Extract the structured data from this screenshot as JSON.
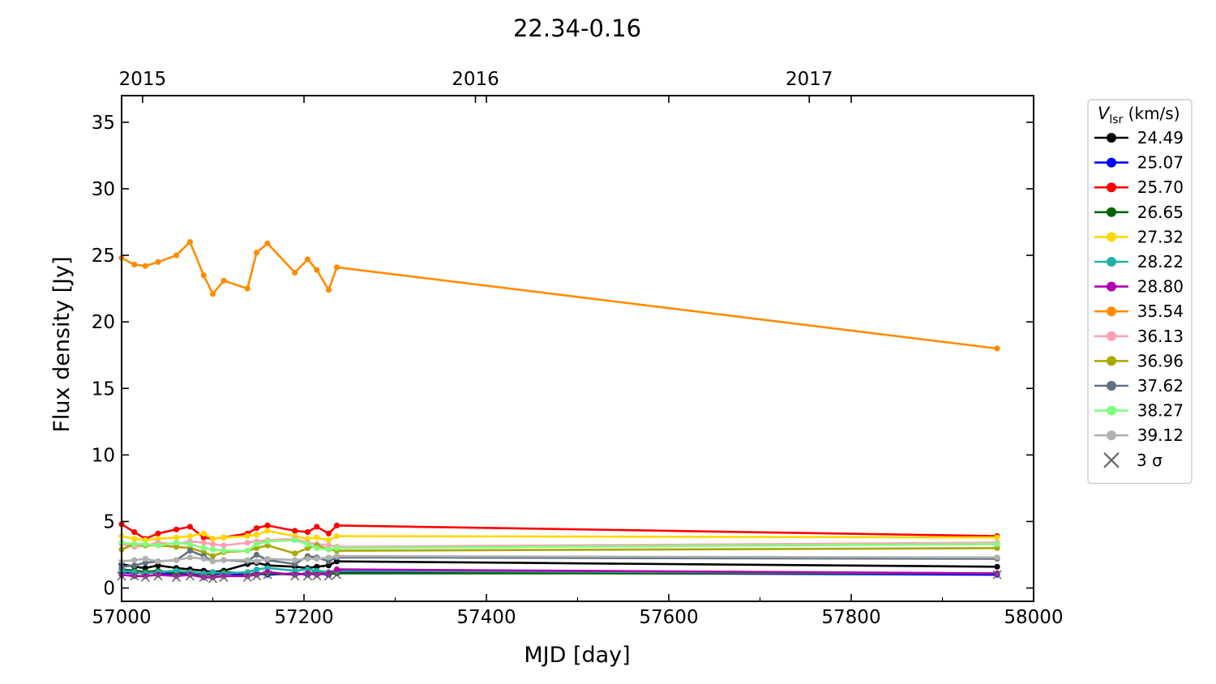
{
  "chart_data": {
    "type": "line",
    "title": "22.34-0.16",
    "xlabel": "MJD [day]",
    "ylabel": "Flux density [Jy]",
    "xlim": [
      57000,
      58000
    ],
    "ylim": [
      -1,
      37
    ],
    "x_ticks": [
      57000,
      57200,
      57400,
      57600,
      57800,
      58000
    ],
    "y_ticks": [
      0,
      5,
      10,
      15,
      20,
      25,
      30,
      35
    ],
    "secondary_x_axis": {
      "ticks": [
        {
          "label": "2015",
          "mjd": 57023
        },
        {
          "label": "2016",
          "mjd": 57388
        },
        {
          "label": "2017",
          "mjd": 57754
        }
      ]
    },
    "grid": false,
    "legend": {
      "placement": "outside-right",
      "title_symbol": "V",
      "title_subscript": "lsr",
      "title_unit": "(km/s)",
      "sigma_label": "3 σ",
      "sigma_color": "#666666"
    },
    "x": [
      57000,
      57014,
      57026,
      57040,
      57060,
      57075,
      57090,
      57100,
      57112,
      57138,
      57148,
      57160,
      57190,
      57204,
      57214,
      57227,
      57236,
      57960
    ],
    "series": [
      {
        "name": "24.49",
        "color": "#000000",
        "values": [
          1.8,
          1.6,
          1.5,
          1.7,
          1.5,
          1.4,
          1.3,
          1.2,
          1.3,
          1.8,
          1.9,
          1.7,
          1.6,
          1.5,
          1.6,
          1.7,
          2.0,
          1.6
        ]
      },
      {
        "name": "25.07",
        "color": "#0000ff",
        "values": [
          1.2,
          1.1,
          1.2,
          1.1,
          1.0,
          1.1,
          1.0,
          1.0,
          1.1,
          1.0,
          1.1,
          1.0,
          1.1,
          1.0,
          1.1,
          1.0,
          1.2,
          1.0
        ]
      },
      {
        "name": "25.70",
        "color": "#ff0000",
        "values": [
          4.8,
          4.2,
          3.7,
          4.1,
          4.4,
          4.6,
          3.8,
          3.7,
          3.8,
          4.1,
          4.5,
          4.7,
          4.3,
          4.2,
          4.6,
          4.1,
          4.7,
          3.9
        ]
      },
      {
        "name": "26.65",
        "color": "#006400",
        "values": [
          1.4,
          1.3,
          1.2,
          1.3,
          1.1,
          1.2,
          1.0,
          1.1,
          1.2,
          1.1,
          1.0,
          1.1,
          1.0,
          1.1,
          1.2,
          1.1,
          1.1,
          1.1
        ]
      },
      {
        "name": "27.32",
        "color": "#ffd700",
        "values": [
          3.9,
          3.7,
          3.6,
          3.7,
          3.8,
          3.9,
          4.1,
          3.7,
          3.8,
          3.9,
          4.0,
          4.3,
          3.9,
          3.7,
          3.8,
          3.6,
          3.9,
          3.8
        ]
      },
      {
        "name": "28.22",
        "color": "#20b2aa",
        "values": [
          1.3,
          1.2,
          1.1,
          1.2,
          1.3,
          1.2,
          1.1,
          1.2,
          1.1,
          1.2,
          1.4,
          1.5,
          1.3,
          1.4,
          1.3,
          1.2,
          1.3,
          1.1
        ]
      },
      {
        "name": "28.80",
        "color": "#b000b0",
        "values": [
          1.0,
          0.9,
          0.9,
          1.0,
          0.9,
          1.0,
          0.8,
          0.8,
          0.9,
          0.9,
          1.0,
          1.2,
          1.0,
          1.1,
          1.0,
          1.1,
          1.4,
          1.1
        ]
      },
      {
        "name": "35.54",
        "color": "#ff8c00",
        "values": [
          24.8,
          24.3,
          24.2,
          24.5,
          25.0,
          26.0,
          23.5,
          22.1,
          23.1,
          22.5,
          25.2,
          25.9,
          23.7,
          24.7,
          23.9,
          22.4,
          24.1,
          18.0
        ]
      },
      {
        "name": "36.13",
        "color": "#ffa0b4",
        "values": [
          3.3,
          3.1,
          3.2,
          3.4,
          3.3,
          3.5,
          3.4,
          3.3,
          3.2,
          3.4,
          3.5,
          3.6,
          3.7,
          3.4,
          3.3,
          3.2,
          3.1,
          3.4
        ]
      },
      {
        "name": "36.96",
        "color": "#a8a800",
        "values": [
          2.9,
          3.3,
          3.2,
          3.2,
          3.1,
          3.0,
          2.7,
          2.4,
          2.7,
          2.8,
          3.0,
          3.2,
          2.6,
          3.0,
          3.2,
          2.9,
          2.8,
          3.0
        ]
      },
      {
        "name": "37.62",
        "color": "#607080",
        "values": [
          1.6,
          1.7,
          1.9,
          2.0,
          2.1,
          2.8,
          2.4,
          2.0,
          2.1,
          2.0,
          2.5,
          2.1,
          1.8,
          2.4,
          2.3,
          2.0,
          2.3,
          2.2
        ]
      },
      {
        "name": "38.27",
        "color": "#80ff80",
        "values": [
          3.4,
          3.3,
          3.3,
          3.2,
          3.4,
          3.3,
          3.0,
          2.9,
          2.8,
          2.8,
          3.3,
          3.5,
          3.6,
          3.3,
          3.0,
          2.9,
          3.0,
          3.3
        ]
      },
      {
        "name": "39.12",
        "color": "#b0b0b0",
        "values": [
          2.0,
          2.1,
          2.2,
          2.0,
          2.1,
          2.3,
          2.2,
          2.0,
          2.1,
          2.1,
          2.0,
          2.2,
          2.1,
          2.2,
          2.2,
          2.3,
          2.4,
          2.3
        ]
      }
    ],
    "sigma_points": [
      {
        "x": 57000,
        "y": 0.9
      },
      {
        "x": 57014,
        "y": 0.9
      },
      {
        "x": 57026,
        "y": 0.8
      },
      {
        "x": 57040,
        "y": 0.9
      },
      {
        "x": 57060,
        "y": 0.8
      },
      {
        "x": 57075,
        "y": 0.9
      },
      {
        "x": 57090,
        "y": 0.8
      },
      {
        "x": 57100,
        "y": 0.7
      },
      {
        "x": 57112,
        "y": 0.8
      },
      {
        "x": 57138,
        "y": 0.8
      },
      {
        "x": 57148,
        "y": 0.9
      },
      {
        "x": 57160,
        "y": 1.0
      },
      {
        "x": 57190,
        "y": 0.9
      },
      {
        "x": 57204,
        "y": 0.9
      },
      {
        "x": 57214,
        "y": 0.9
      },
      {
        "x": 57227,
        "y": 0.9
      },
      {
        "x": 57236,
        "y": 1.0
      },
      {
        "x": 57960,
        "y": 1.0
      }
    ]
  }
}
